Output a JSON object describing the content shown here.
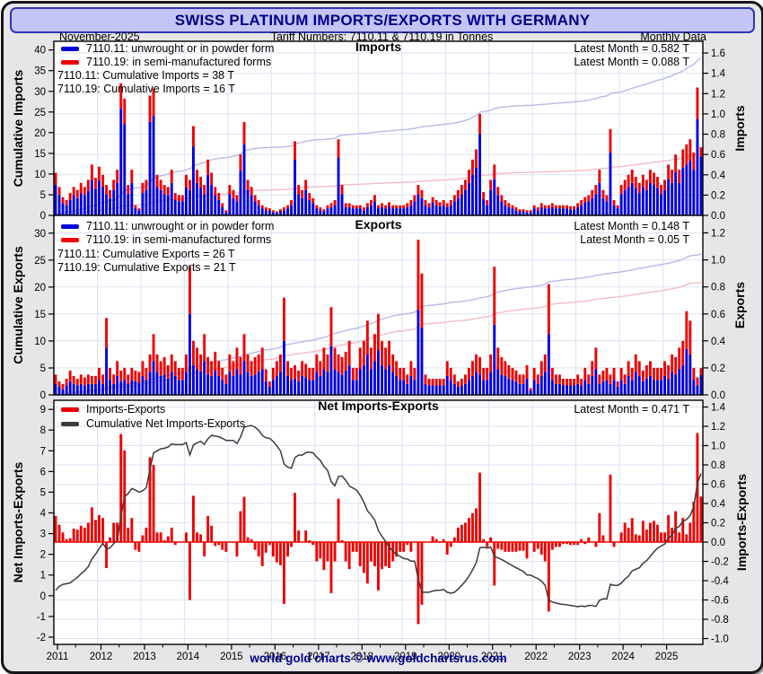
{
  "header": {
    "title": "SWISS PLATINUM IMPORTS/EXPORTS WITH GERMANY",
    "date": "November-2025",
    "tariff": "Tariff Numbers: 7110.11 & 7110.19 in Tonnes",
    "frequency": "Monthly Data"
  },
  "footer": {
    "credit": "world gold charts © www.goldchartsrus.com"
  },
  "colors": {
    "accent_bar_blue": "#0000dd",
    "accent_bar_red": "#ee0000",
    "cumulative_blue": "#b9b9e8",
    "cumulative_pink": "#f3bcc6",
    "net_line": "#3c3c3c",
    "navy_text": "#00008b",
    "grid": "#dbe2f0",
    "titlebar_bg": "#c4c5f4"
  },
  "x_axis": {
    "start_year": 2011,
    "months": 179,
    "year_labels": [
      "2011",
      "2012",
      "2013",
      "2014",
      "2015",
      "2016",
      "2017",
      "2018",
      "2019",
      "2020",
      "2021",
      "2022",
      "2023",
      "2024",
      "2025"
    ]
  },
  "chart_data": [
    {
      "type": "bar",
      "title": "Imports",
      "legend": [
        {
          "label": "7110.11: unwrought or in powder form",
          "color": "#0000dd"
        },
        {
          "label": "7110.19: in semi-manufactured forms",
          "color": "#ee0000"
        }
      ],
      "annotations": [
        "7110.11: Cumulative Imports = 38 T",
        "7110.19: Cumulative Imports = 16 T"
      ],
      "latest": [
        "Latest Month = 0.582 T",
        "Latest Month = 0.088 T"
      ],
      "left_axis": {
        "label": "Cumulative Imports",
        "ticks": [
          0,
          5,
          10,
          15,
          20,
          25,
          30,
          35,
          40
        ],
        "range": [
          0,
          42.1
        ]
      },
      "right_axis": {
        "label": "Imports",
        "ticks": [
          "0.0",
          "0.2",
          "0.4",
          "0.6",
          "0.8",
          "1.0",
          "1.2",
          "1.4",
          "1.6"
        ],
        "range": [
          0,
          1.715
        ]
      },
      "series": [
        {
          "name": "7110.11",
          "color": "#0000dd",
          "values": [
            0.3,
            0.2,
            0.12,
            0.1,
            0.15,
            0.2,
            0.17,
            0.22,
            0.2,
            0.24,
            0.35,
            0.26,
            0.34,
            0.28,
            0.21,
            0.17,
            0.25,
            0.32,
            1.05,
            0.9,
            0.21,
            0.32,
            0.07,
            0.05,
            0.22,
            0.25,
            0.92,
            0.98,
            0.28,
            0.25,
            0.21,
            0.2,
            0.32,
            0.15,
            0.14,
            0.14,
            0.28,
            0.25,
            0.68,
            0.32,
            0.27,
            0.21,
            0.4,
            0.3,
            0.2,
            0.15,
            0.08,
            0.03,
            0.21,
            0.17,
            0.14,
            0.44,
            0.7,
            0.25,
            0.2,
            0.14,
            0.1,
            0.07,
            0.05,
            0.05,
            0.03,
            0.03,
            0.04,
            0.05,
            0.07,
            0.1,
            0.55,
            0.21,
            0.17,
            0.25,
            0.15,
            0.12,
            0.07,
            0.05,
            0.04,
            0.07,
            0.08,
            0.1,
            0.57,
            0.21,
            0.08,
            0.08,
            0.07,
            0.07,
            0.07,
            0.05,
            0.08,
            0.1,
            0.14,
            0.07,
            0.08,
            0.07,
            0.09,
            0.07,
            0.07,
            0.07,
            0.07,
            0.08,
            0.1,
            0.14,
            0.21,
            0.17,
            0.1,
            0.08,
            0.13,
            0.1,
            0.09,
            0.1,
            0.08,
            0.1,
            0.14,
            0.17,
            0.21,
            0.25,
            0.32,
            0.4,
            0.47,
            0.8,
            0.16,
            0.1,
            0.25,
            0.36,
            0.2,
            0.14,
            0.1,
            0.08,
            0.07,
            0.05,
            0.04,
            0.04,
            0.03,
            0.03,
            0.07,
            0.05,
            0.08,
            0.07,
            0.07,
            0.08,
            0.07,
            0.07,
            0.07,
            0.07,
            0.06,
            0.06,
            0.08,
            0.1,
            0.13,
            0.14,
            0.17,
            0.21,
            0.32,
            0.17,
            0.14,
            0.62,
            0.1,
            0.07,
            0.21,
            0.25,
            0.28,
            0.32,
            0.27,
            0.22,
            0.28,
            0.25,
            0.32,
            0.3,
            0.27,
            0.21,
            0.25,
            0.36,
            0.32,
            0.43,
            0.32,
            0.47,
            0.5,
            0.54,
            0.45,
            0.95,
            0.582
          ]
        },
        {
          "name": "7110.19",
          "color": "#ee0000",
          "values": [
            0.12,
            0.08,
            0.06,
            0.05,
            0.07,
            0.08,
            0.08,
            0.1,
            0.08,
            0.11,
            0.15,
            0.11,
            0.14,
            0.12,
            0.09,
            0.08,
            0.1,
            0.13,
            0.25,
            0.25,
            0.09,
            0.13,
            0.03,
            0.02,
            0.1,
            0.1,
            0.26,
            0.27,
            0.12,
            0.1,
            0.09,
            0.08,
            0.13,
            0.07,
            0.06,
            0.06,
            0.12,
            0.1,
            0.2,
            0.13,
            0.11,
            0.09,
            0.15,
            0.12,
            0.08,
            0.07,
            0.04,
            0.02,
            0.09,
            0.08,
            0.06,
            0.16,
            0.22,
            0.1,
            0.08,
            0.06,
            0.05,
            0.03,
            0.03,
            0.02,
            0.02,
            0.01,
            0.02,
            0.03,
            0.03,
            0.05,
            0.18,
            0.09,
            0.08,
            0.1,
            0.07,
            0.05,
            0.03,
            0.03,
            0.02,
            0.03,
            0.04,
            0.05,
            0.18,
            0.09,
            0.04,
            0.04,
            0.03,
            0.03,
            0.03,
            0.03,
            0.04,
            0.05,
            0.06,
            0.03,
            0.04,
            0.03,
            0.04,
            0.03,
            0.03,
            0.03,
            0.03,
            0.04,
            0.05,
            0.06,
            0.09,
            0.08,
            0.05,
            0.04,
            0.05,
            0.05,
            0.04,
            0.05,
            0.04,
            0.05,
            0.06,
            0.08,
            0.09,
            0.1,
            0.13,
            0.15,
            0.18,
            0.2,
            0.07,
            0.05,
            0.1,
            0.14,
            0.08,
            0.06,
            0.05,
            0.04,
            0.03,
            0.03,
            0.02,
            0.02,
            0.02,
            0.02,
            0.03,
            0.03,
            0.04,
            0.03,
            0.03,
            0.04,
            0.03,
            0.03,
            0.03,
            0.03,
            0.03,
            0.03,
            0.04,
            0.05,
            0.05,
            0.06,
            0.08,
            0.09,
            0.13,
            0.08,
            0.06,
            0.23,
            0.05,
            0.03,
            0.09,
            0.1,
            0.12,
            0.13,
            0.11,
            0.1,
            0.12,
            0.1,
            0.13,
            0.12,
            0.11,
            0.09,
            0.1,
            0.14,
            0.13,
            0.17,
            0.13,
            0.18,
            0.2,
            0.21,
            0.17,
            0.31,
            0.088
          ]
        }
      ]
    },
    {
      "type": "bar",
      "title": "Exports",
      "legend": [
        {
          "label": "7110.11: unwrought or in powder form",
          "color": "#0000dd"
        },
        {
          "label": "7110.19: in semi-manufactured forms",
          "color": "#ee0000"
        }
      ],
      "annotations": [
        "7110.11: Cumulative Exports = 26 T",
        "7110.19: Cumulative Exports = 21 T"
      ],
      "latest": [
        "Latest Month = 0.148 T",
        "Latest Month = 0.05 T"
      ],
      "left_axis": {
        "label": "Cumulative Exports",
        "ticks": [
          0,
          5,
          10,
          15,
          20,
          25,
          30
        ],
        "range": [
          0,
          33.3
        ]
      },
      "right_axis": {
        "label": "Exports",
        "ticks": [
          "0.0",
          "0.2",
          "0.4",
          "0.6",
          "0.8",
          "1.0",
          "1.2"
        ],
        "range": [
          0,
          1.33
        ]
      },
      "series": [
        {
          "name": "7110.11",
          "color": "#0000dd",
          "values": [
            0.08,
            0.06,
            0.04,
            0.07,
            0.1,
            0.08,
            0.07,
            0.08,
            0.07,
            0.08,
            0.08,
            0.08,
            0.11,
            0.08,
            0.35,
            0.11,
            0.08,
            0.14,
            0.1,
            0.11,
            0.08,
            0.11,
            0.1,
            0.09,
            0.14,
            0.11,
            0.17,
            0.25,
            0.17,
            0.14,
            0.15,
            0.12,
            0.17,
            0.14,
            0.11,
            0.11,
            0.17,
            0.6,
            0.22,
            0.19,
            0.17,
            0.25,
            0.15,
            0.14,
            0.18,
            0.14,
            0.11,
            0.08,
            0.17,
            0.14,
            0.19,
            0.15,
            0.25,
            0.17,
            0.14,
            0.15,
            0.17,
            0.19,
            0.1,
            0.06,
            0.11,
            0.14,
            0.17,
            0.4,
            0.14,
            0.11,
            0.12,
            0.1,
            0.14,
            0.13,
            0.11,
            0.11,
            0.17,
            0.14,
            0.19,
            0.17,
            0.36,
            0.19,
            0.17,
            0.15,
            0.18,
            0.22,
            0.11,
            0.11,
            0.19,
            0.22,
            0.3,
            0.19,
            0.25,
            0.33,
            0.22,
            0.19,
            0.22,
            0.17,
            0.14,
            0.11,
            0.11,
            0.08,
            0.14,
            0.11,
            0.63,
            0.5,
            0.08,
            0.07,
            0.07,
            0.07,
            0.07,
            0.07,
            0.14,
            0.11,
            0.08,
            0.06,
            0.07,
            0.08,
            0.11,
            0.14,
            0.17,
            0.15,
            0.11,
            0.11,
            0.17,
            0.52,
            0.19,
            0.15,
            0.14,
            0.12,
            0.11,
            0.1,
            0.08,
            0.08,
            0.12,
            0.03,
            0.11,
            0.08,
            0.14,
            0.17,
            0.45,
            0.11,
            0.08,
            0.08,
            0.07,
            0.07,
            0.07,
            0.07,
            0.08,
            0.07,
            0.11,
            0.08,
            0.14,
            0.19,
            0.08,
            0.1,
            0.11,
            0.08,
            0.11,
            0.06,
            0.11,
            0.08,
            0.14,
            0.11,
            0.17,
            0.14,
            0.1,
            0.12,
            0.14,
            0.11,
            0.11,
            0.11,
            0.14,
            0.12,
            0.17,
            0.15,
            0.19,
            0.22,
            0.34,
            0.3,
            0.11,
            0.07,
            0.148
          ]
        },
        {
          "name": "7110.19",
          "color": "#ee0000",
          "values": [
            0.07,
            0.04,
            0.04,
            0.05,
            0.08,
            0.06,
            0.05,
            0.07,
            0.06,
            0.07,
            0.06,
            0.06,
            0.09,
            0.07,
            0.22,
            0.09,
            0.07,
            0.11,
            0.08,
            0.09,
            0.07,
            0.09,
            0.08,
            0.08,
            0.11,
            0.09,
            0.13,
            0.2,
            0.13,
            0.11,
            0.13,
            0.1,
            0.13,
            0.11,
            0.09,
            0.09,
            0.13,
            0.35,
            0.18,
            0.16,
            0.13,
            0.2,
            0.13,
            0.11,
            0.14,
            0.11,
            0.09,
            0.07,
            0.13,
            0.11,
            0.16,
            0.13,
            0.2,
            0.13,
            0.11,
            0.13,
            0.13,
            0.16,
            0.09,
            0.04,
            0.09,
            0.11,
            0.13,
            0.32,
            0.11,
            0.09,
            0.1,
            0.08,
            0.11,
            0.1,
            0.09,
            0.09,
            0.13,
            0.11,
            0.16,
            0.13,
            0.29,
            0.16,
            0.13,
            0.13,
            0.14,
            0.18,
            0.09,
            0.09,
            0.16,
            0.18,
            0.25,
            0.16,
            0.2,
            0.27,
            0.18,
            0.16,
            0.18,
            0.13,
            0.11,
            0.09,
            0.09,
            0.07,
            0.11,
            0.09,
            0.52,
            0.4,
            0.07,
            0.05,
            0.05,
            0.05,
            0.05,
            0.05,
            0.11,
            0.09,
            0.07,
            0.04,
            0.05,
            0.07,
            0.09,
            0.11,
            0.13,
            0.13,
            0.09,
            0.09,
            0.13,
            0.43,
            0.16,
            0.13,
            0.11,
            0.1,
            0.09,
            0.08,
            0.07,
            0.07,
            0.1,
            0.02,
            0.09,
            0.07,
            0.11,
            0.13,
            0.37,
            0.09,
            0.07,
            0.07,
            0.05,
            0.05,
            0.05,
            0.05,
            0.07,
            0.05,
            0.09,
            0.07,
            0.11,
            0.16,
            0.07,
            0.08,
            0.09,
            0.07,
            0.09,
            0.04,
            0.09,
            0.07,
            0.11,
            0.09,
            0.13,
            0.11,
            0.08,
            0.1,
            0.11,
            0.09,
            0.09,
            0.09,
            0.11,
            0.1,
            0.13,
            0.13,
            0.16,
            0.18,
            0.28,
            0.25,
            0.09,
            0.06,
            0.05
          ]
        }
      ]
    },
    {
      "type": "bar",
      "title": "Net Imports-Exports",
      "derived": "net = (imports 7110.11 + 7110.19) - (exports 7110.11 + 7110.19); line = running cumulative of net",
      "legend": [
        {
          "label": "Imports-Exports",
          "color": "#ee0000"
        },
        {
          "label": "Cumulative Net Imports-Exports",
          "color": "#3c3c3c"
        }
      ],
      "annotations": [],
      "latest": [
        "Latest Month = 0.471 T"
      ],
      "left_axis": {
        "label": "Net Imports-Exports",
        "ticks": [
          -2,
          -1,
          0,
          1,
          2,
          3,
          4,
          5,
          6,
          7,
          8,
          9
        ],
        "range": [
          -2.35,
          9.44
        ]
      },
      "right_axis": {
        "label": "Imports-Exports",
        "ticks": [
          "-1.0",
          "-0.8",
          "-0.6",
          "-0.4",
          "-0.2",
          "0.0",
          "0.2",
          "0.4",
          "0.6",
          "0.8",
          "1.0",
          "1.2",
          "1.4"
        ],
        "range": [
          -1.06,
          1.47
        ]
      }
    }
  ]
}
